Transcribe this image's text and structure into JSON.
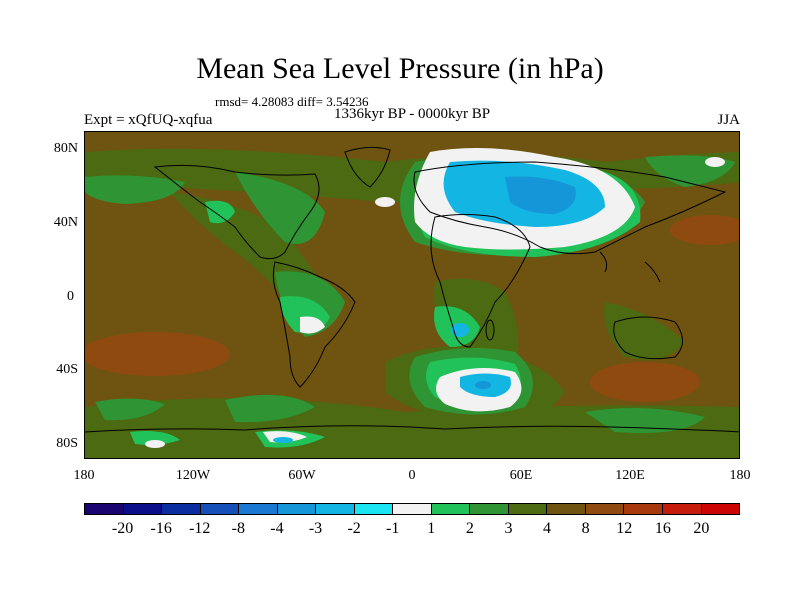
{
  "title": "Mean Sea Level Pressure (in hPa)",
  "stats": "rmsd= 4.28083 diff= 3.54236",
  "expt": "Expt = xQfUQ-xqfua",
  "period": "1336kyr BP - 0000kyr BP",
  "season": "JJA",
  "y_ticks": [
    "80N",
    "40N",
    "0",
    "40S",
    "80S"
  ],
  "x_ticks": [
    "180",
    "120W",
    "60W",
    "0",
    "60E",
    "120E",
    "180"
  ],
  "colorbar": {
    "labels": [
      "-20",
      "-16",
      "-12",
      "-8",
      "-4",
      "-3",
      "-2",
      "-1",
      "1",
      "2",
      "3",
      "4",
      "8",
      "12",
      "16",
      "20"
    ],
    "colors": [
      "#1a0470",
      "#0b0f8a",
      "#0a2ea0",
      "#1450b8",
      "#1a78d2",
      "#1496d8",
      "#13b6e3",
      "#1be5f2",
      "#f2f2f2",
      "#22c25a",
      "#2e9434",
      "#4c6a12",
      "#6e5410",
      "#8f4a10",
      "#a8380e",
      "#c51c0c",
      "#cc0404"
    ]
  },
  "palette": {
    "background": "#6e5410",
    "brown_dark": "#8f4a10",
    "olive": "#4c6a12",
    "green_mid": "#2e9434",
    "green_light": "#22c25a",
    "white": "#f2f2f2",
    "cyan": "#13b6e3",
    "cyan_light": "#1be5f2",
    "blue": "#1496d8"
  }
}
